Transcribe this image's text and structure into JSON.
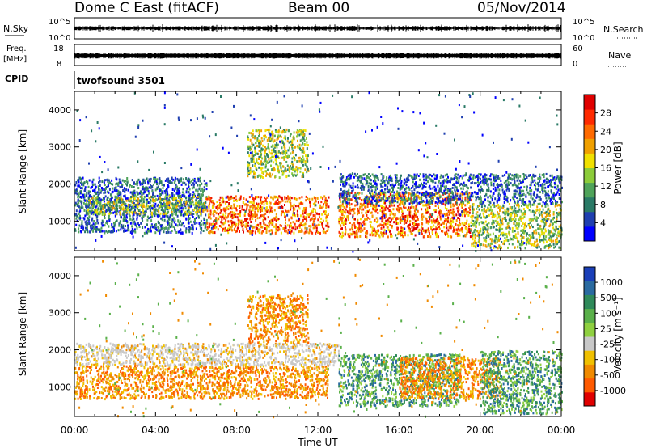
{
  "header": {
    "station": "Dome C East (fitACF)",
    "beam": "Beam 00",
    "date": "05/Nov/2014"
  },
  "params": {
    "nsky": {
      "label": "N.Sky",
      "tick_top": "10^5",
      "tick_bottom": "10^0"
    },
    "nsearch": {
      "label": "N.Search",
      "tick_top": "10^5",
      "tick_bottom": "10^0"
    },
    "freq": {
      "label_line1": "Freq.",
      "label_line2": "[MHz]",
      "tick_top": "18",
      "tick_bottom": "8"
    },
    "nave": {
      "label": "Nave",
      "tick_top": "60",
      "tick_bottom": "0"
    },
    "cpid": {
      "label": "CPID",
      "value": "twofsound 3501"
    }
  },
  "chart_data": [
    {
      "type": "heatmap",
      "name": "power",
      "xlabel": "",
      "ylabel": "Slant Range [km]",
      "yticks": [
        "1000",
        "2000",
        "3000",
        "4000"
      ],
      "ylim": [
        200,
        4500
      ],
      "xlim": [
        0,
        24
      ],
      "colorbar": {
        "label": "Power [dB]",
        "ticks": [
          "4",
          "8",
          "12",
          "16",
          "20",
          "24",
          "28"
        ],
        "colors": [
          "#0000ff",
          "#1f3fb0",
          "#2a7a66",
          "#4fa35a",
          "#8ccc3a",
          "#f0e000",
          "#f0a000",
          "#ff6a00",
          "#ff2a00",
          "#e00000"
        ]
      },
      "scatter_regions": [
        {
          "t0": 0.0,
          "t1": 6.5,
          "r0": 700,
          "r1": 2200,
          "level": "low"
        },
        {
          "t0": 0.5,
          "t1": 6.5,
          "r0": 1200,
          "r1": 1700,
          "level": "mid"
        },
        {
          "t0": 6.5,
          "t1": 12.5,
          "r0": 700,
          "r1": 1700,
          "level": "high"
        },
        {
          "t0": 8.5,
          "t1": 11.5,
          "r0": 2200,
          "r1": 3500,
          "level": "mid"
        },
        {
          "t0": 13.0,
          "t1": 19.5,
          "r0": 600,
          "r1": 1800,
          "level": "high"
        },
        {
          "t0": 13.0,
          "t1": 24.0,
          "r0": 1500,
          "r1": 2300,
          "level": "low"
        },
        {
          "t0": 19.5,
          "t1": 24.0,
          "r0": 300,
          "r1": 1500,
          "level": "mid"
        }
      ]
    },
    {
      "type": "heatmap",
      "name": "velocity",
      "xlabel": "Time UT",
      "ylabel": "Slant Range [km]",
      "yticks": [
        "1000",
        "2000",
        "3000",
        "4000"
      ],
      "ylim": [
        200,
        4500
      ],
      "xlim": [
        0,
        24
      ],
      "xticks": [
        "00:00",
        "04:00",
        "08:00",
        "12:00",
        "16:00",
        "20:00",
        "00:00"
      ],
      "colorbar": {
        "label": "Velocity [m s⁻¹]",
        "ticks": [
          "1000",
          "500",
          "100",
          "25",
          "-25",
          "-100",
          "-500",
          "-1000"
        ],
        "colors": [
          "#1a3fb8",
          "#2a6aa0",
          "#2f8a5a",
          "#5ab04a",
          "#8fd040",
          "#c8c8c8",
          "#f0c000",
          "#f08a00",
          "#ff5a00",
          "#e00000"
        ]
      },
      "scatter_regions": [
        {
          "t0": 0.0,
          "t1": 12.5,
          "r0": 700,
          "r1": 1600,
          "level": "neg"
        },
        {
          "t0": 0.0,
          "t1": 13.0,
          "r0": 1600,
          "r1": 2200,
          "level": "grey"
        },
        {
          "t0": 8.5,
          "t1": 11.5,
          "r0": 2200,
          "r1": 3500,
          "level": "neg"
        },
        {
          "t0": 13.0,
          "t1": 19.0,
          "r0": 500,
          "r1": 1900,
          "level": "pos"
        },
        {
          "t0": 16.0,
          "t1": 21.0,
          "r0": 700,
          "r1": 1800,
          "level": "neg"
        },
        {
          "t0": 20.0,
          "t1": 24.0,
          "r0": 300,
          "r1": 2000,
          "level": "pos"
        }
      ]
    }
  ]
}
